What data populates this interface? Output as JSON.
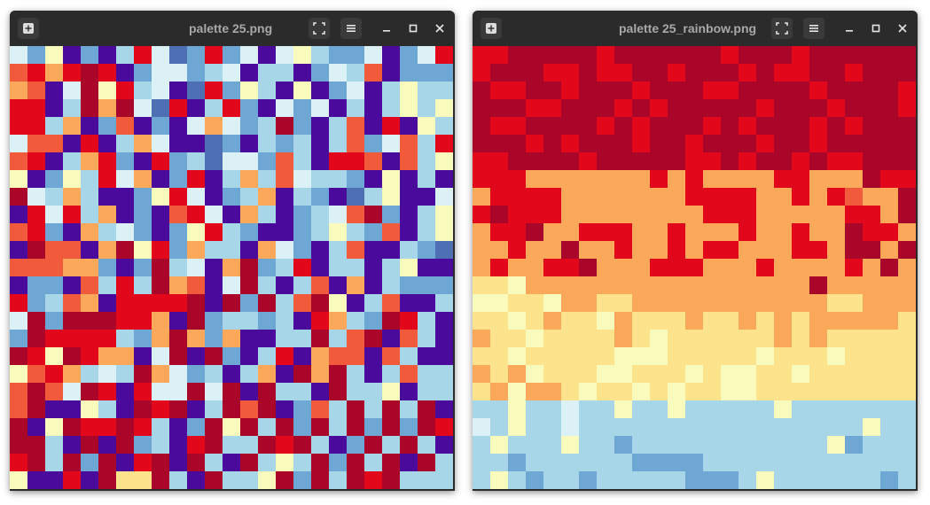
{
  "palette": [
    "#4a0a9b",
    "#4f6fb5",
    "#6ea6d4",
    "#a6d6e8",
    "#dcf1f6",
    "#f9fbbd",
    "#fde48c",
    "#fba85a",
    "#f25a3c",
    "#e3071b",
    "#a9062a"
  ],
  "windows": [
    {
      "title": "palette 25.png",
      "icons": [
        "add-icon",
        "fullscreen-icon",
        "menu-icon",
        "minimize-icon",
        "maximize-icon",
        "close-icon"
      ],
      "pixels": [
        "42502039412924045322402495",
        "8979A9024423403302438022",
        "7804A5934019253050240353",
        "9903A7A4190392042403035352",
        "993702802047423A2038090530",
        "4880903740012032303824839",
        "8903792092314428309980835",
        "5025394702903738433205030",
        "A4373002594023703201350047",
        "09493702089407302348A2035",
        "8920734202593200235328035",
        "0A8807A5927330742038003212",
        "88877202A3407A2390330350",
        "02208393A7804A303807032",
        "9238709999A0A2A38A5038003",
        "4A2AAA9970A2332309732A930",
        "2A9999327A7270033A38A0830",
        "A95A97704A0A203907880830",
        "5897343A74230370A7A30383",
        "8A84A90944A4A0A330A33503",
        "8A00530A9A03A8A0283A3A3A0",
        "A05A99A9302A5A3A2A3A2A2A9",
        "AA30A0A2309A33A9A302A3A30",
        "9A3A2A09A0A30A353A2A3A0A3",
        "50090A66A30A335A2A3A9A333"
      ]
    },
    {
      "title": "palette 25_rainbow.png",
      "icons": [
        "add-icon",
        "fullscreen-icon",
        "menu-icon",
        "minimize-icon",
        "maximize-icon",
        "close-icon"
      ],
      "pixels": [
        "99AAAAA9AAAAAA9AAA9AAAAAAA",
        "9AAA99A99AA9AAA9A99AA9AAAA",
        "A99AA9AAA9AAA99AAAA9AAAA9A",
        "AAA99AAA9A9AAAAA9AAA9AAA9A",
        "A99AAAA9A9AAA9A9AAA9A9AAA9",
        "AAA9A9AAA9AA9AAA9AA9AAAAA9",
        "99AAAA9AAAAA99A9AA9A99AAA9",
        "9997777777979777799777A99A",
        "799997777777999977979877A9",
        "9A9997777777799977777997A9",
        "799A77999779777977977A9979",
        "77977A779779799777997AA7A7",
        "797799A7779997779777797A77",
        "6657777777777777777A777777",
        "5566577667777777777766777",
        "6656766576667667676777776",
        "76656666765666666767666666",
        "6656666655566666566656666",
        "76756665566656556656666666",
        "6757765665656655666666666",
        "3353343353353333353333333",
        "4353343333333333333333533",
        "3533353323333333333352333",
        "3323333332222333333333333",
        "3532332333332223533333323"
      ]
    }
  ]
}
